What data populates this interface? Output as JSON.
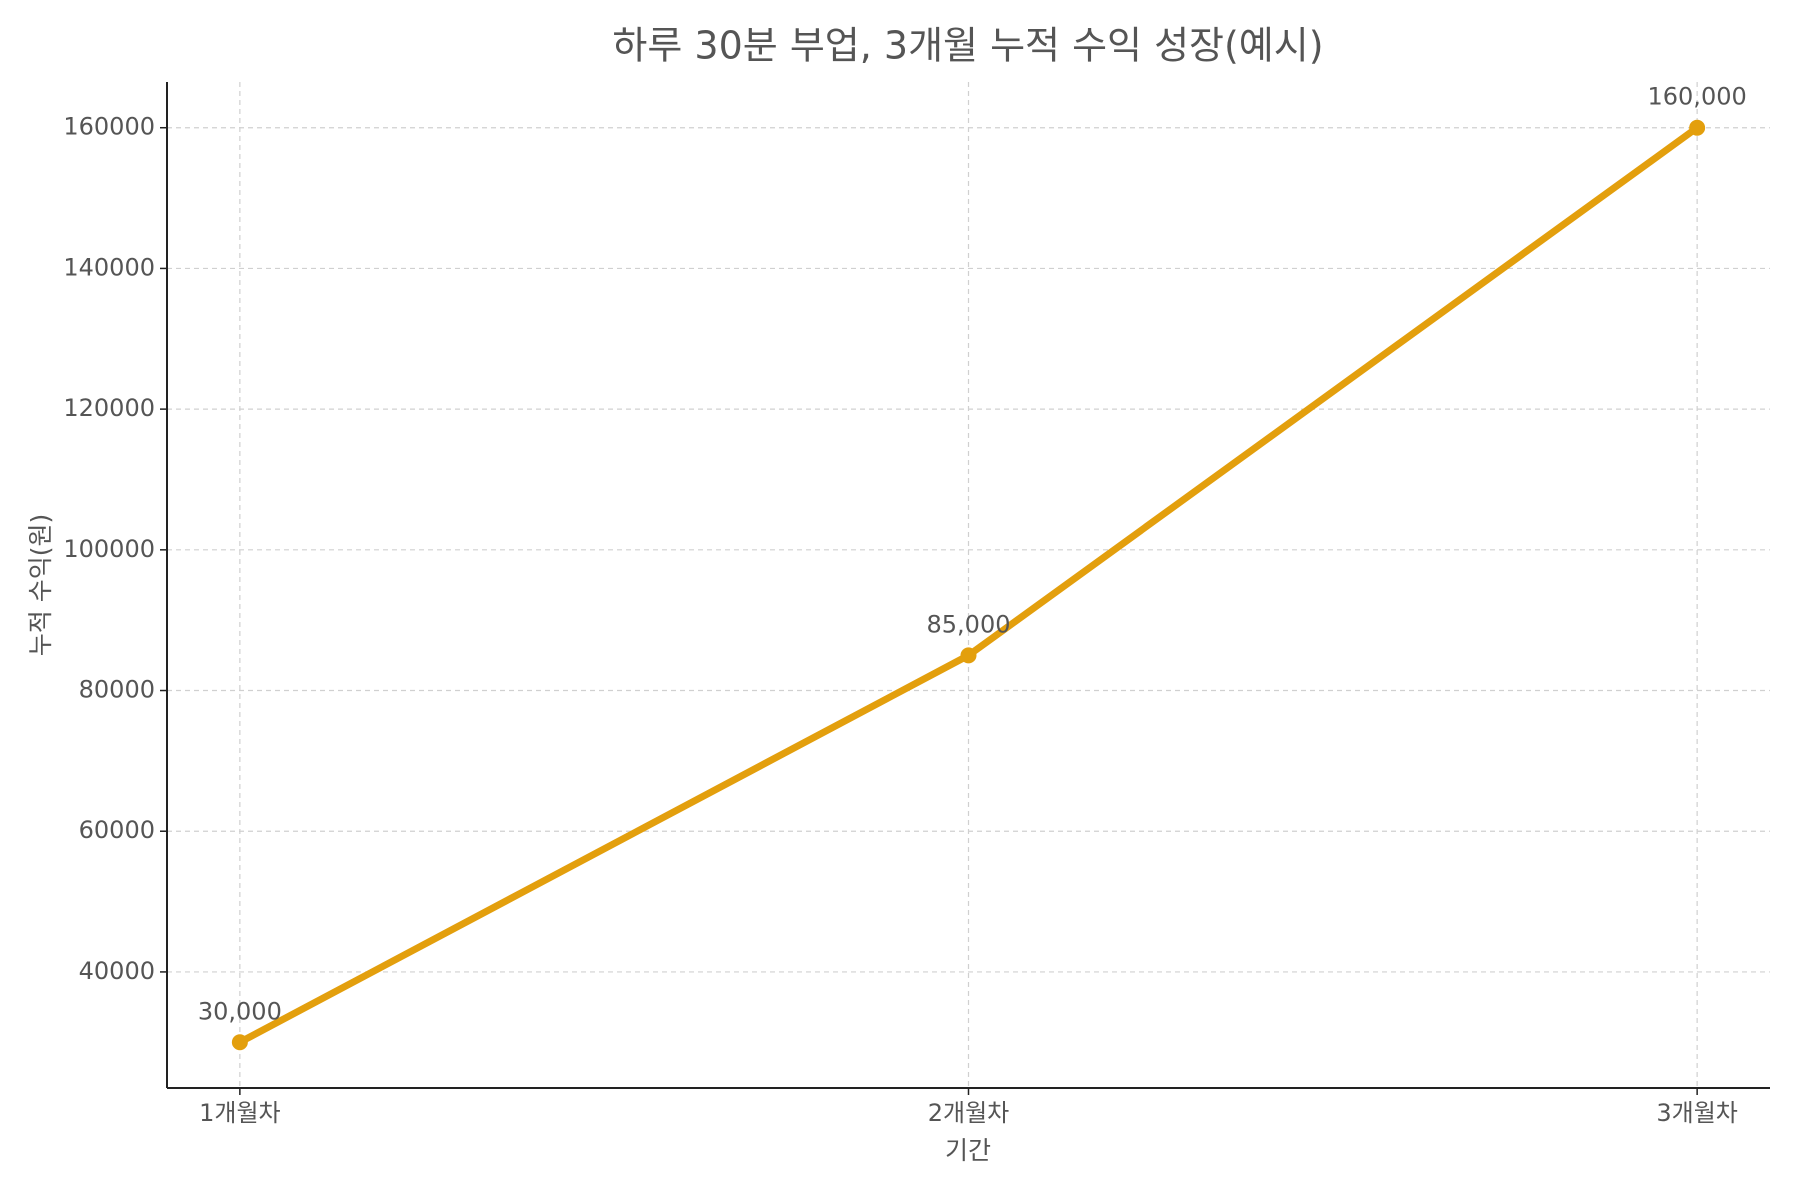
{
  "chart_data": {
    "type": "line",
    "title": "하루 30분 부업, 3개월 누적 수익 성장(예시)",
    "x_label": "기간",
    "y_label": "누적 수익(원)",
    "categories": [
      "1개월차",
      "2개월차",
      "3개월차"
    ],
    "series": [
      {
        "name": "누적 수익",
        "color": "#e39f0d",
        "values": [
          30000,
          85000,
          160000
        ],
        "value_labels": [
          "30,000",
          "85,000",
          "160,000"
        ]
      }
    ],
    "ylim": [
      23500,
      166500
    ],
    "yticks": [
      40000,
      60000,
      80000,
      100000,
      120000,
      140000,
      160000
    ],
    "grid": true
  }
}
